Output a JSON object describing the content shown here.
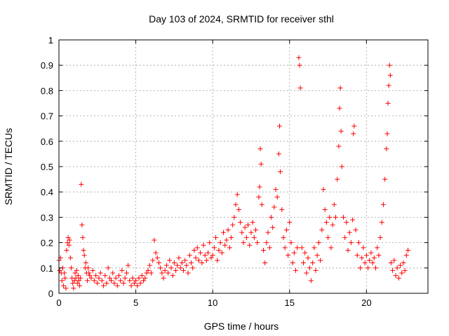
{
  "chart_data": {
    "type": "scatter",
    "title": "Day 103 of 2024, SRMTID for receiver sthl",
    "xlabel": "GPS time / hours",
    "ylabel": "SRMTID / TECUs",
    "xlim": [
      0,
      24
    ],
    "ylim": [
      0,
      1
    ],
    "x_ticks": [
      0,
      5,
      10,
      15,
      20
    ],
    "x_tick_labels": [
      "0",
      "5",
      "10",
      "15",
      "20"
    ],
    "y_ticks": [
      0,
      0.1,
      0.2,
      0.3,
      0.4,
      0.5,
      0.6,
      0.7,
      0.8,
      0.9,
      1
    ],
    "y_tick_labels": [
      "0",
      "0.1",
      "0.2",
      "0.3",
      "0.4",
      "0.5",
      "0.6",
      "0.7",
      "0.8",
      "0.9",
      "1"
    ],
    "grid": true,
    "marker": "+",
    "series": [
      {
        "name": "sthl",
        "color": "#ff0000",
        "points": [
          [
            0.0,
            0.13
          ],
          [
            0.05,
            0.09
          ],
          [
            0.1,
            0.14
          ],
          [
            0.15,
            0.08
          ],
          [
            0.2,
            0.05
          ],
          [
            0.25,
            0.1
          ],
          [
            0.3,
            0.03
          ],
          [
            0.35,
            0.08
          ],
          [
            0.4,
            0.06
          ],
          [
            0.45,
            0.02
          ],
          [
            0.5,
            0.17
          ],
          [
            0.55,
            0.2
          ],
          [
            0.6,
            0.22
          ],
          [
            0.65,
            0.19
          ],
          [
            0.7,
            0.21
          ],
          [
            0.75,
            0.14
          ],
          [
            0.8,
            0.1
          ],
          [
            0.85,
            0.06
          ],
          [
            0.9,
            0.04
          ],
          [
            0.95,
            0.02
          ],
          [
            1.0,
            0.05
          ],
          [
            1.05,
            0.08
          ],
          [
            1.1,
            0.06
          ],
          [
            1.15,
            0.09
          ],
          [
            1.2,
            0.04
          ],
          [
            1.25,
            0.07
          ],
          [
            1.3,
            0.05
          ],
          [
            1.35,
            0.03
          ],
          [
            1.4,
            0.06
          ],
          [
            1.45,
            0.43
          ],
          [
            1.5,
            0.27
          ],
          [
            1.55,
            0.22
          ],
          [
            1.6,
            0.17
          ],
          [
            1.65,
            0.15
          ],
          [
            1.7,
            0.1
          ],
          [
            1.75,
            0.12
          ],
          [
            1.8,
            0.08
          ],
          [
            1.85,
            0.05
          ],
          [
            1.9,
            0.1
          ],
          [
            1.95,
            0.08
          ],
          [
            2.0,
            0.07
          ],
          [
            2.1,
            0.06
          ],
          [
            2.2,
            0.09
          ],
          [
            2.3,
            0.05
          ],
          [
            2.4,
            0.07
          ],
          [
            2.5,
            0.04
          ],
          [
            2.6,
            0.06
          ],
          [
            2.7,
            0.08
          ],
          [
            2.8,
            0.05
          ],
          [
            2.9,
            0.03
          ],
          [
            3.0,
            0.07
          ],
          [
            3.1,
            0.04
          ],
          [
            3.2,
            0.1
          ],
          [
            3.3,
            0.06
          ],
          [
            3.4,
            0.05
          ],
          [
            3.5,
            0.08
          ],
          [
            3.6,
            0.04
          ],
          [
            3.7,
            0.06
          ],
          [
            3.8,
            0.03
          ],
          [
            3.9,
            0.07
          ],
          [
            4.0,
            0.05
          ],
          [
            4.1,
            0.09
          ],
          [
            4.2,
            0.04
          ],
          [
            4.3,
            0.06
          ],
          [
            4.4,
            0.08
          ],
          [
            4.5,
            0.11
          ],
          [
            4.6,
            0.05
          ],
          [
            4.7,
            0.03
          ],
          [
            4.8,
            0.06
          ],
          [
            4.9,
            0.04
          ],
          [
            5.0,
            0.05
          ],
          [
            5.1,
            0.03
          ],
          [
            5.2,
            0.06
          ],
          [
            5.3,
            0.04
          ],
          [
            5.4,
            0.07
          ],
          [
            5.5,
            0.05
          ],
          [
            5.6,
            0.06
          ],
          [
            5.7,
            0.08
          ],
          [
            5.8,
            0.09
          ],
          [
            5.9,
            0.11
          ],
          [
            6.0,
            0.08
          ],
          [
            6.1,
            0.13
          ],
          [
            6.2,
            0.21
          ],
          [
            6.3,
            0.16
          ],
          [
            6.4,
            0.14
          ],
          [
            6.5,
            0.12
          ],
          [
            6.6,
            0.1
          ],
          [
            6.7,
            0.08
          ],
          [
            6.8,
            0.06
          ],
          [
            6.9,
            0.09
          ],
          [
            7.0,
            0.11
          ],
          [
            7.1,
            0.08
          ],
          [
            7.2,
            0.13
          ],
          [
            7.3,
            0.1
          ],
          [
            7.4,
            0.07
          ],
          [
            7.5,
            0.12
          ],
          [
            7.6,
            0.09
          ],
          [
            7.7,
            0.11
          ],
          [
            7.8,
            0.14
          ],
          [
            7.9,
            0.1
          ],
          [
            8.0,
            0.12
          ],
          [
            8.1,
            0.09
          ],
          [
            8.2,
            0.13
          ],
          [
            8.3,
            0.11
          ],
          [
            8.4,
            0.08
          ],
          [
            8.5,
            0.15
          ],
          [
            8.6,
            0.12
          ],
          [
            8.7,
            0.1
          ],
          [
            8.8,
            0.17
          ],
          [
            8.9,
            0.14
          ],
          [
            9.0,
            0.18
          ],
          [
            9.1,
            0.13
          ],
          [
            9.2,
            0.16
          ],
          [
            9.3,
            0.12
          ],
          [
            9.4,
            0.19
          ],
          [
            9.5,
            0.15
          ],
          [
            9.6,
            0.13
          ],
          [
            9.7,
            0.16
          ],
          [
            9.8,
            0.2
          ],
          [
            9.9,
            0.14
          ],
          [
            10.0,
            0.15
          ],
          [
            10.1,
            0.18
          ],
          [
            10.2,
            0.22
          ],
          [
            10.3,
            0.13
          ],
          [
            10.4,
            0.17
          ],
          [
            10.5,
            0.2
          ],
          [
            10.6,
            0.16
          ],
          [
            10.7,
            0.24
          ],
          [
            10.8,
            0.19
          ],
          [
            10.9,
            0.21
          ],
          [
            11.0,
            0.25
          ],
          [
            11.1,
            0.18
          ],
          [
            11.2,
            0.22
          ],
          [
            11.3,
            0.27
          ],
          [
            11.4,
            0.3
          ],
          [
            11.5,
            0.35
          ],
          [
            11.6,
            0.39
          ],
          [
            11.7,
            0.33
          ],
          [
            11.8,
            0.28
          ],
          [
            11.9,
            0.24
          ],
          [
            12.0,
            0.2
          ],
          [
            12.1,
            0.26
          ],
          [
            12.2,
            0.22
          ],
          [
            12.3,
            0.27
          ],
          [
            12.4,
            0.19
          ],
          [
            12.5,
            0.24
          ],
          [
            12.6,
            0.28
          ],
          [
            12.7,
            0.22
          ],
          [
            12.8,
            0.25
          ],
          [
            12.9,
            0.2
          ],
          [
            13.0,
            0.38
          ],
          [
            13.05,
            0.42
          ],
          [
            13.1,
            0.57
          ],
          [
            13.15,
            0.51
          ],
          [
            13.2,
            0.35
          ],
          [
            13.3,
            0.17
          ],
          [
            13.4,
            0.12
          ],
          [
            13.5,
            0.2
          ],
          [
            13.6,
            0.24
          ],
          [
            13.7,
            0.18
          ],
          [
            13.8,
            0.3
          ],
          [
            13.9,
            0.26
          ],
          [
            14.0,
            0.34
          ],
          [
            14.1,
            0.41
          ],
          [
            14.2,
            0.38
          ],
          [
            14.3,
            0.55
          ],
          [
            14.35,
            0.66
          ],
          [
            14.4,
            0.48
          ],
          [
            14.5,
            0.33
          ],
          [
            14.6,
            0.22
          ],
          [
            14.7,
            0.18
          ],
          [
            14.8,
            0.25
          ],
          [
            14.9,
            0.15
          ],
          [
            15.0,
            0.28
          ],
          [
            15.1,
            0.2
          ],
          [
            15.2,
            0.12
          ],
          [
            15.3,
            0.16
          ],
          [
            15.4,
            0.09
          ],
          [
            15.5,
            0.18
          ],
          [
            15.6,
            0.93
          ],
          [
            15.65,
            0.9
          ],
          [
            15.7,
            0.81
          ],
          [
            15.8,
            0.18
          ],
          [
            15.9,
            0.12
          ],
          [
            16.0,
            0.16
          ],
          [
            16.1,
            0.08
          ],
          [
            16.2,
            0.14
          ],
          [
            16.3,
            0.1
          ],
          [
            16.4,
            0.05
          ],
          [
            16.5,
            0.12
          ],
          [
            16.6,
            0.18
          ],
          [
            16.7,
            0.09
          ],
          [
            16.8,
            0.15
          ],
          [
            16.9,
            0.2
          ],
          [
            17.0,
            0.13
          ],
          [
            17.1,
            0.25
          ],
          [
            17.2,
            0.41
          ],
          [
            17.3,
            0.33
          ],
          [
            17.4,
            0.28
          ],
          [
            17.5,
            0.22
          ],
          [
            17.6,
            0.3
          ],
          [
            17.7,
            0.18
          ],
          [
            17.8,
            0.27
          ],
          [
            17.9,
            0.35
          ],
          [
            18.0,
            0.3
          ],
          [
            18.1,
            0.45
          ],
          [
            18.2,
            0.58
          ],
          [
            18.25,
            0.73
          ],
          [
            18.3,
            0.81
          ],
          [
            18.35,
            0.64
          ],
          [
            18.4,
            0.5
          ],
          [
            18.5,
            0.3
          ],
          [
            18.6,
            0.22
          ],
          [
            18.7,
            0.28
          ],
          [
            18.8,
            0.17
          ],
          [
            18.9,
            0.24
          ],
          [
            19.0,
            0.2
          ],
          [
            19.1,
            0.29
          ],
          [
            19.15,
            0.63
          ],
          [
            19.2,
            0.66
          ],
          [
            19.3,
            0.25
          ],
          [
            19.4,
            0.15
          ],
          [
            19.5,
            0.2
          ],
          [
            19.6,
            0.1
          ],
          [
            19.7,
            0.14
          ],
          [
            19.8,
            0.18
          ],
          [
            19.9,
            0.12
          ],
          [
            20.0,
            0.15
          ],
          [
            20.1,
            0.1
          ],
          [
            20.2,
            0.13
          ],
          [
            20.3,
            0.16
          ],
          [
            20.4,
            0.12
          ],
          [
            20.5,
            0.14
          ],
          [
            20.6,
            0.1
          ],
          [
            20.7,
            0.18
          ],
          [
            20.8,
            0.15
          ],
          [
            20.9,
            0.22
          ],
          [
            21.0,
            0.28
          ],
          [
            21.1,
            0.35
          ],
          [
            21.2,
            0.45
          ],
          [
            21.3,
            0.57
          ],
          [
            21.35,
            0.63
          ],
          [
            21.4,
            0.75
          ],
          [
            21.45,
            0.82
          ],
          [
            21.5,
            0.9
          ],
          [
            21.55,
            0.86
          ],
          [
            21.6,
            0.12
          ],
          [
            21.7,
            0.09
          ],
          [
            21.8,
            0.13
          ],
          [
            21.9,
            0.07
          ],
          [
            22.0,
            0.1
          ],
          [
            22.1,
            0.06
          ],
          [
            22.2,
            0.11
          ],
          [
            22.3,
            0.08
          ],
          [
            22.4,
            0.12
          ],
          [
            22.5,
            0.09
          ],
          [
            22.6,
            0.15
          ],
          [
            22.7,
            0.17
          ]
        ]
      }
    ]
  }
}
